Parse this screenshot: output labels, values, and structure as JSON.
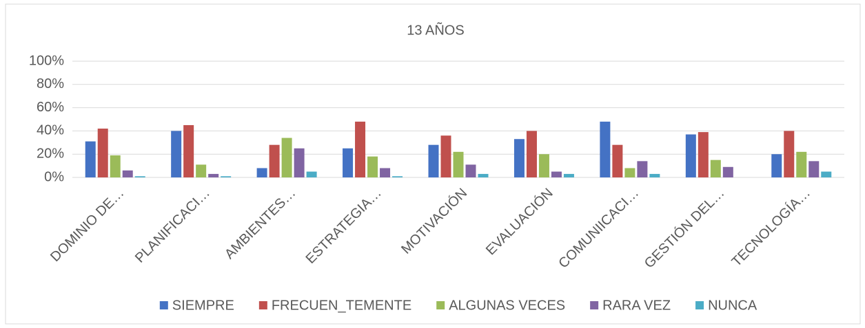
{
  "chart_data": {
    "type": "bar",
    "title": "13 AÑOS",
    "categories": [
      "DOMINIO DE…",
      "PLANIFICACI…",
      "AMBIENTES…",
      "ESTRATEGIA…",
      "MOTIVACIÓN",
      "EVALUACIÓN",
      "COMUNIICACI…",
      "GESTIÓN DEL…",
      "TECNOLOGÍA…"
    ],
    "series": [
      {
        "name": "SIEMPRE",
        "color": "#4472c4",
        "values": [
          31,
          40,
          8,
          25,
          28,
          33,
          48,
          37,
          20
        ]
      },
      {
        "name": "FRECUEN_TEMENTE",
        "color": "#c0504d",
        "values": [
          42,
          45,
          28,
          48,
          36,
          40,
          28,
          39,
          40
        ]
      },
      {
        "name": "ALGUNAS VECES",
        "color": "#9bbb59",
        "values": [
          19,
          11,
          34,
          18,
          22,
          20,
          8,
          15,
          22
        ]
      },
      {
        "name": "RARA VEZ",
        "color": "#8064a2",
        "values": [
          6,
          3,
          25,
          8,
          11,
          5,
          14,
          9,
          14
        ]
      },
      {
        "name": "NUNCA",
        "color": "#4bacc6",
        "values": [
          1,
          1,
          5,
          1,
          3,
          3,
          3,
          0,
          5
        ]
      }
    ],
    "ylim": [
      0,
      100
    ],
    "yticks": [
      {
        "value": 0,
        "label": "0%"
      },
      {
        "value": 20,
        "label": "20%"
      },
      {
        "value": 40,
        "label": "40%"
      },
      {
        "value": 60,
        "label": "60%"
      },
      {
        "value": 80,
        "label": "80%"
      },
      {
        "value": 100,
        "label": "100%"
      }
    ],
    "grid": true,
    "legend": "bottom"
  }
}
